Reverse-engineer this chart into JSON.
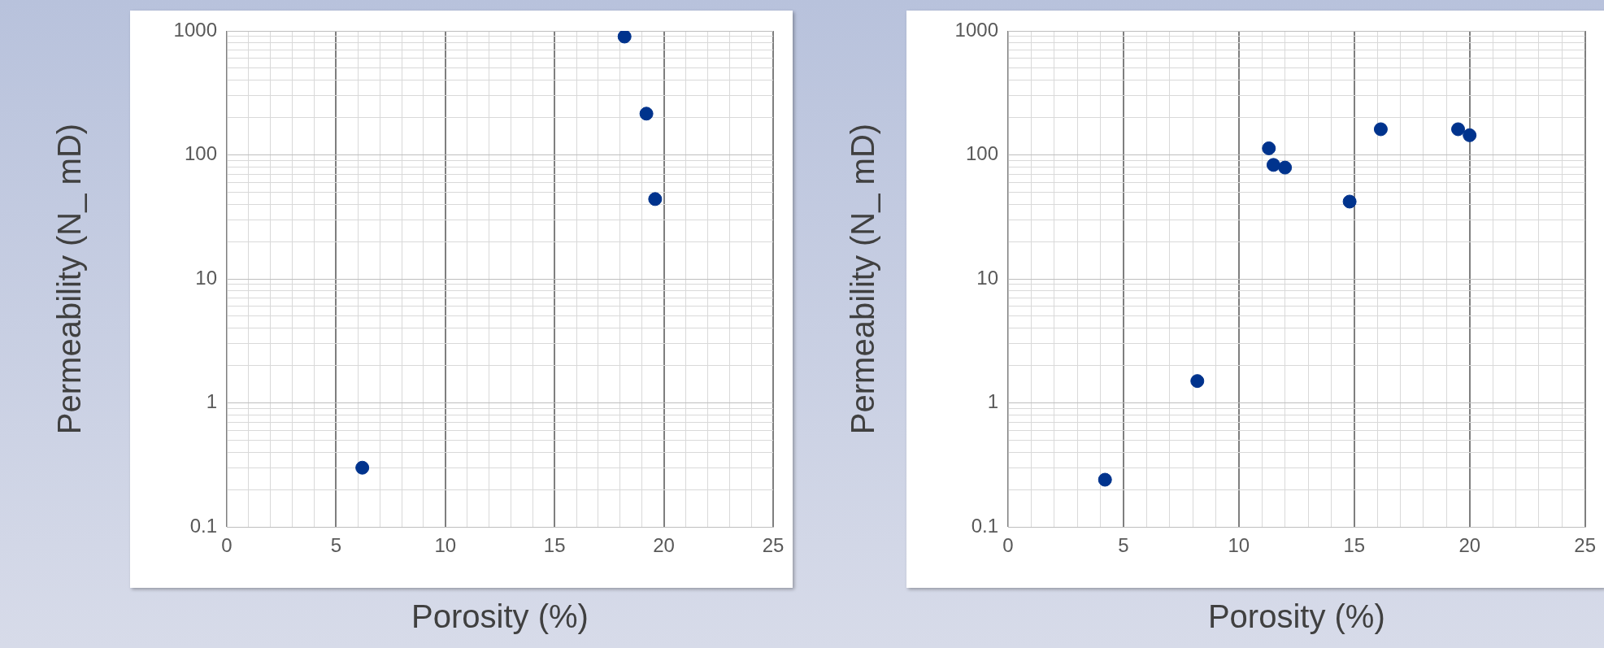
{
  "chart_data": [
    {
      "type": "scatter",
      "xlabel": "Porosity (%)",
      "ylabel": "Permeability (N_ mD)",
      "x": [
        18.2,
        19.2,
        19.6,
        6.2
      ],
      "values": [
        900,
        215,
        44,
        0.3
      ],
      "color": "#00338d",
      "marker": "circle",
      "log": "y",
      "grid": true,
      "xlim": [
        0,
        25
      ],
      "ylim": [
        0.1,
        1000
      ],
      "xticks": [
        0,
        {
          "value": 1,
          "label": null
        },
        {
          "value": 2,
          "label": null
        },
        {
          "value": 3,
          "label": null
        },
        {
          "value": 4,
          "label": null
        },
        5,
        {
          "value": 6,
          "label": null
        },
        {
          "value": 7,
          "label": null
        },
        {
          "value": 8,
          "label": null
        },
        {
          "value": 9,
          "label": null
        },
        10,
        {
          "value": 11,
          "label": null
        },
        {
          "value": 12,
          "label": null
        },
        {
          "value": 13,
          "label": null
        },
        {
          "value": 14,
          "label": null
        },
        15,
        {
          "value": 16,
          "label": null
        },
        {
          "value": 17,
          "label": null
        },
        {
          "value": 18,
          "label": null
        },
        {
          "value": 19,
          "label": null
        },
        20,
        {
          "value": 21,
          "label": null
        },
        {
          "value": 22,
          "label": null
        },
        {
          "value": 23,
          "label": null
        },
        {
          "value": 24,
          "label": null
        },
        25
      ],
      "yticks": [
        0.1,
        {
          "value": 0.2,
          "label": null
        },
        {
          "value": 0.3,
          "label": null
        },
        {
          "value": 0.4,
          "label": null
        },
        {
          "value": 0.5,
          "label": null
        },
        {
          "value": 0.6,
          "label": null
        },
        {
          "value": 0.7,
          "label": null
        },
        {
          "value": 0.8,
          "label": null
        },
        {
          "value": 0.9,
          "label": null
        },
        1,
        {
          "value": 2,
          "label": null
        },
        {
          "value": 3,
          "label": null
        },
        {
          "value": 4,
          "label": null
        },
        {
          "value": 5,
          "label": null
        },
        {
          "value": 6,
          "label": null
        },
        {
          "value": 7,
          "label": null
        },
        {
          "value": 8,
          "label": null
        },
        {
          "value": 9,
          "label": null
        },
        10,
        {
          "value": 20,
          "label": null
        },
        {
          "value": 30,
          "label": null
        },
        {
          "value": 40,
          "label": null
        },
        {
          "value": 50,
          "label": null
        },
        {
          "value": 60,
          "label": null
        },
        {
          "value": 70,
          "label": null
        },
        {
          "value": 80,
          "label": null
        },
        {
          "value": 90,
          "label": null
        },
        100,
        {
          "value": 200,
          "label": null
        },
        {
          "value": 300,
          "label": null
        },
        {
          "value": 400,
          "label": null
        },
        {
          "value": 500,
          "label": null
        },
        {
          "value": 600,
          "label": null
        },
        {
          "value": 700,
          "label": null
        },
        {
          "value": 800,
          "label": null
        },
        {
          "value": 900,
          "label": null
        },
        1000
      ]
    },
    {
      "type": "scatter",
      "xlabel": "Porosity (%)",
      "ylabel": "Permeability (N_ mD)",
      "x": [
        4.2,
        8.2,
        11.3,
        11.5,
        12.0,
        14.8,
        16.15,
        19.5,
        20.0
      ],
      "values": [
        0.24,
        1.5,
        113,
        83,
        79,
        42,
        161,
        161,
        144
      ],
      "color": "#00338d",
      "marker": "circle",
      "log": "y",
      "grid": true,
      "xlim": [
        0,
        25
      ],
      "ylim": [
        0.1,
        1000
      ],
      "xticks": [
        0,
        {
          "value": 1,
          "label": null
        },
        {
          "value": 2,
          "label": null
        },
        {
          "value": 3,
          "label": null
        },
        {
          "value": 4,
          "label": null
        },
        5,
        {
          "value": 6,
          "label": null
        },
        {
          "value": 7,
          "label": null
        },
        {
          "value": 8,
          "label": null
        },
        {
          "value": 9,
          "label": null
        },
        10,
        {
          "value": 11,
          "label": null
        },
        {
          "value": 12,
          "label": null
        },
        {
          "value": 13,
          "label": null
        },
        {
          "value": 14,
          "label": null
        },
        15,
        {
          "value": 16,
          "label": null
        },
        {
          "value": 17,
          "label": null
        },
        {
          "value": 18,
          "label": null
        },
        {
          "value": 19,
          "label": null
        },
        20,
        {
          "value": 21,
          "label": null
        },
        {
          "value": 22,
          "label": null
        },
        {
          "value": 23,
          "label": null
        },
        {
          "value": 24,
          "label": null
        },
        25
      ],
      "yticks": [
        0.1,
        {
          "value": 0.2,
          "label": null
        },
        {
          "value": 0.3,
          "label": null
        },
        {
          "value": 0.4,
          "label": null
        },
        {
          "value": 0.5,
          "label": null
        },
        {
          "value": 0.6,
          "label": null
        },
        {
          "value": 0.7,
          "label": null
        },
        {
          "value": 0.8,
          "label": null
        },
        {
          "value": 0.9,
          "label": null
        },
        1,
        {
          "value": 2,
          "label": null
        },
        {
          "value": 3,
          "label": null
        },
        {
          "value": 4,
          "label": null
        },
        {
          "value": 5,
          "label": null
        },
        {
          "value": 6,
          "label": null
        },
        {
          "value": 7,
          "label": null
        },
        {
          "value": 8,
          "label": null
        },
        {
          "value": 9,
          "label": null
        },
        10,
        {
          "value": 20,
          "label": null
        },
        {
          "value": 30,
          "label": null
        },
        {
          "value": 40,
          "label": null
        },
        {
          "value": 50,
          "label": null
        },
        {
          "value": 60,
          "label": null
        },
        {
          "value": 70,
          "label": null
        },
        {
          "value": 80,
          "label": null
        },
        {
          "value": 90,
          "label": null
        },
        100,
        {
          "value": 200,
          "label": null
        },
        {
          "value": 300,
          "label": null
        },
        {
          "value": 400,
          "label": null
        },
        {
          "value": 500,
          "label": null
        },
        {
          "value": 600,
          "label": null
        },
        {
          "value": 700,
          "label": null
        },
        {
          "value": 800,
          "label": null
        },
        {
          "value": 900,
          "label": null
        },
        1000
      ]
    }
  ]
}
